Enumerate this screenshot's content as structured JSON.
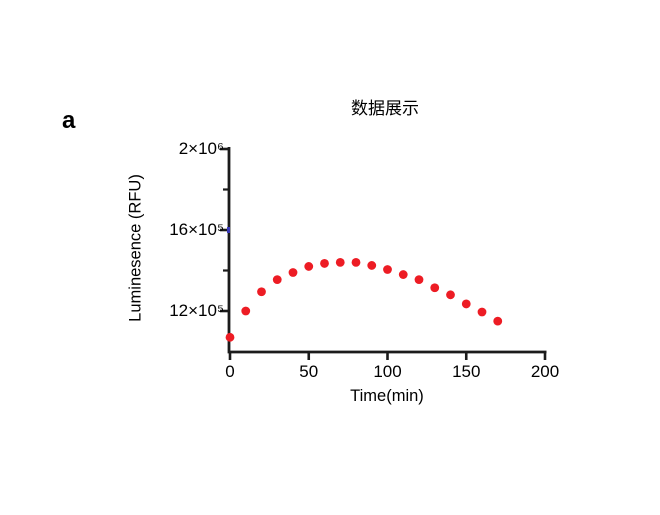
{
  "panel_label": "a",
  "chart_data": {
    "type": "scatter",
    "title": "数据展示",
    "xlabel": "Time(min)",
    "ylabel": "Luminesence (RFU)",
    "x": [
      0,
      10,
      20,
      30,
      40,
      50,
      60,
      70,
      80,
      90,
      100,
      110,
      120,
      130,
      140,
      150,
      160,
      170
    ],
    "y_1e5_rfu": [
      10.7,
      12.0,
      12.95,
      13.55,
      13.9,
      14.2,
      14.35,
      14.4,
      14.4,
      14.25,
      14.05,
      13.8,
      13.55,
      13.15,
      12.8,
      12.35,
      11.95,
      11.5
    ],
    "x_axis": {
      "range": [
        0,
        200
      ],
      "ticks": [
        {
          "v": 0,
          "label": "0"
        },
        {
          "v": 50,
          "label": "50"
        },
        {
          "v": 100,
          "label": "100"
        },
        {
          "v": 150,
          "label": "150"
        },
        {
          "v": 200,
          "label": "200"
        }
      ]
    },
    "y_axis": {
      "range_1e5": [
        10,
        20
      ],
      "major_ticks": [
        {
          "v_1e5": 20,
          "label": "2×10⁶"
        },
        {
          "v_1e5": 16,
          "label": "16×10⁵"
        },
        {
          "v_1e5": 12,
          "label": "12×10⁵"
        }
      ],
      "minor_ticks_1e5": [
        18,
        14
      ]
    },
    "legend": "none",
    "grid": false,
    "colors": {
      "point": "#ed1c24",
      "axis": "#1b1b1b",
      "text": "#000000",
      "blue_axis_mark": "#3a3ab8",
      "background": "#ffffff"
    }
  }
}
